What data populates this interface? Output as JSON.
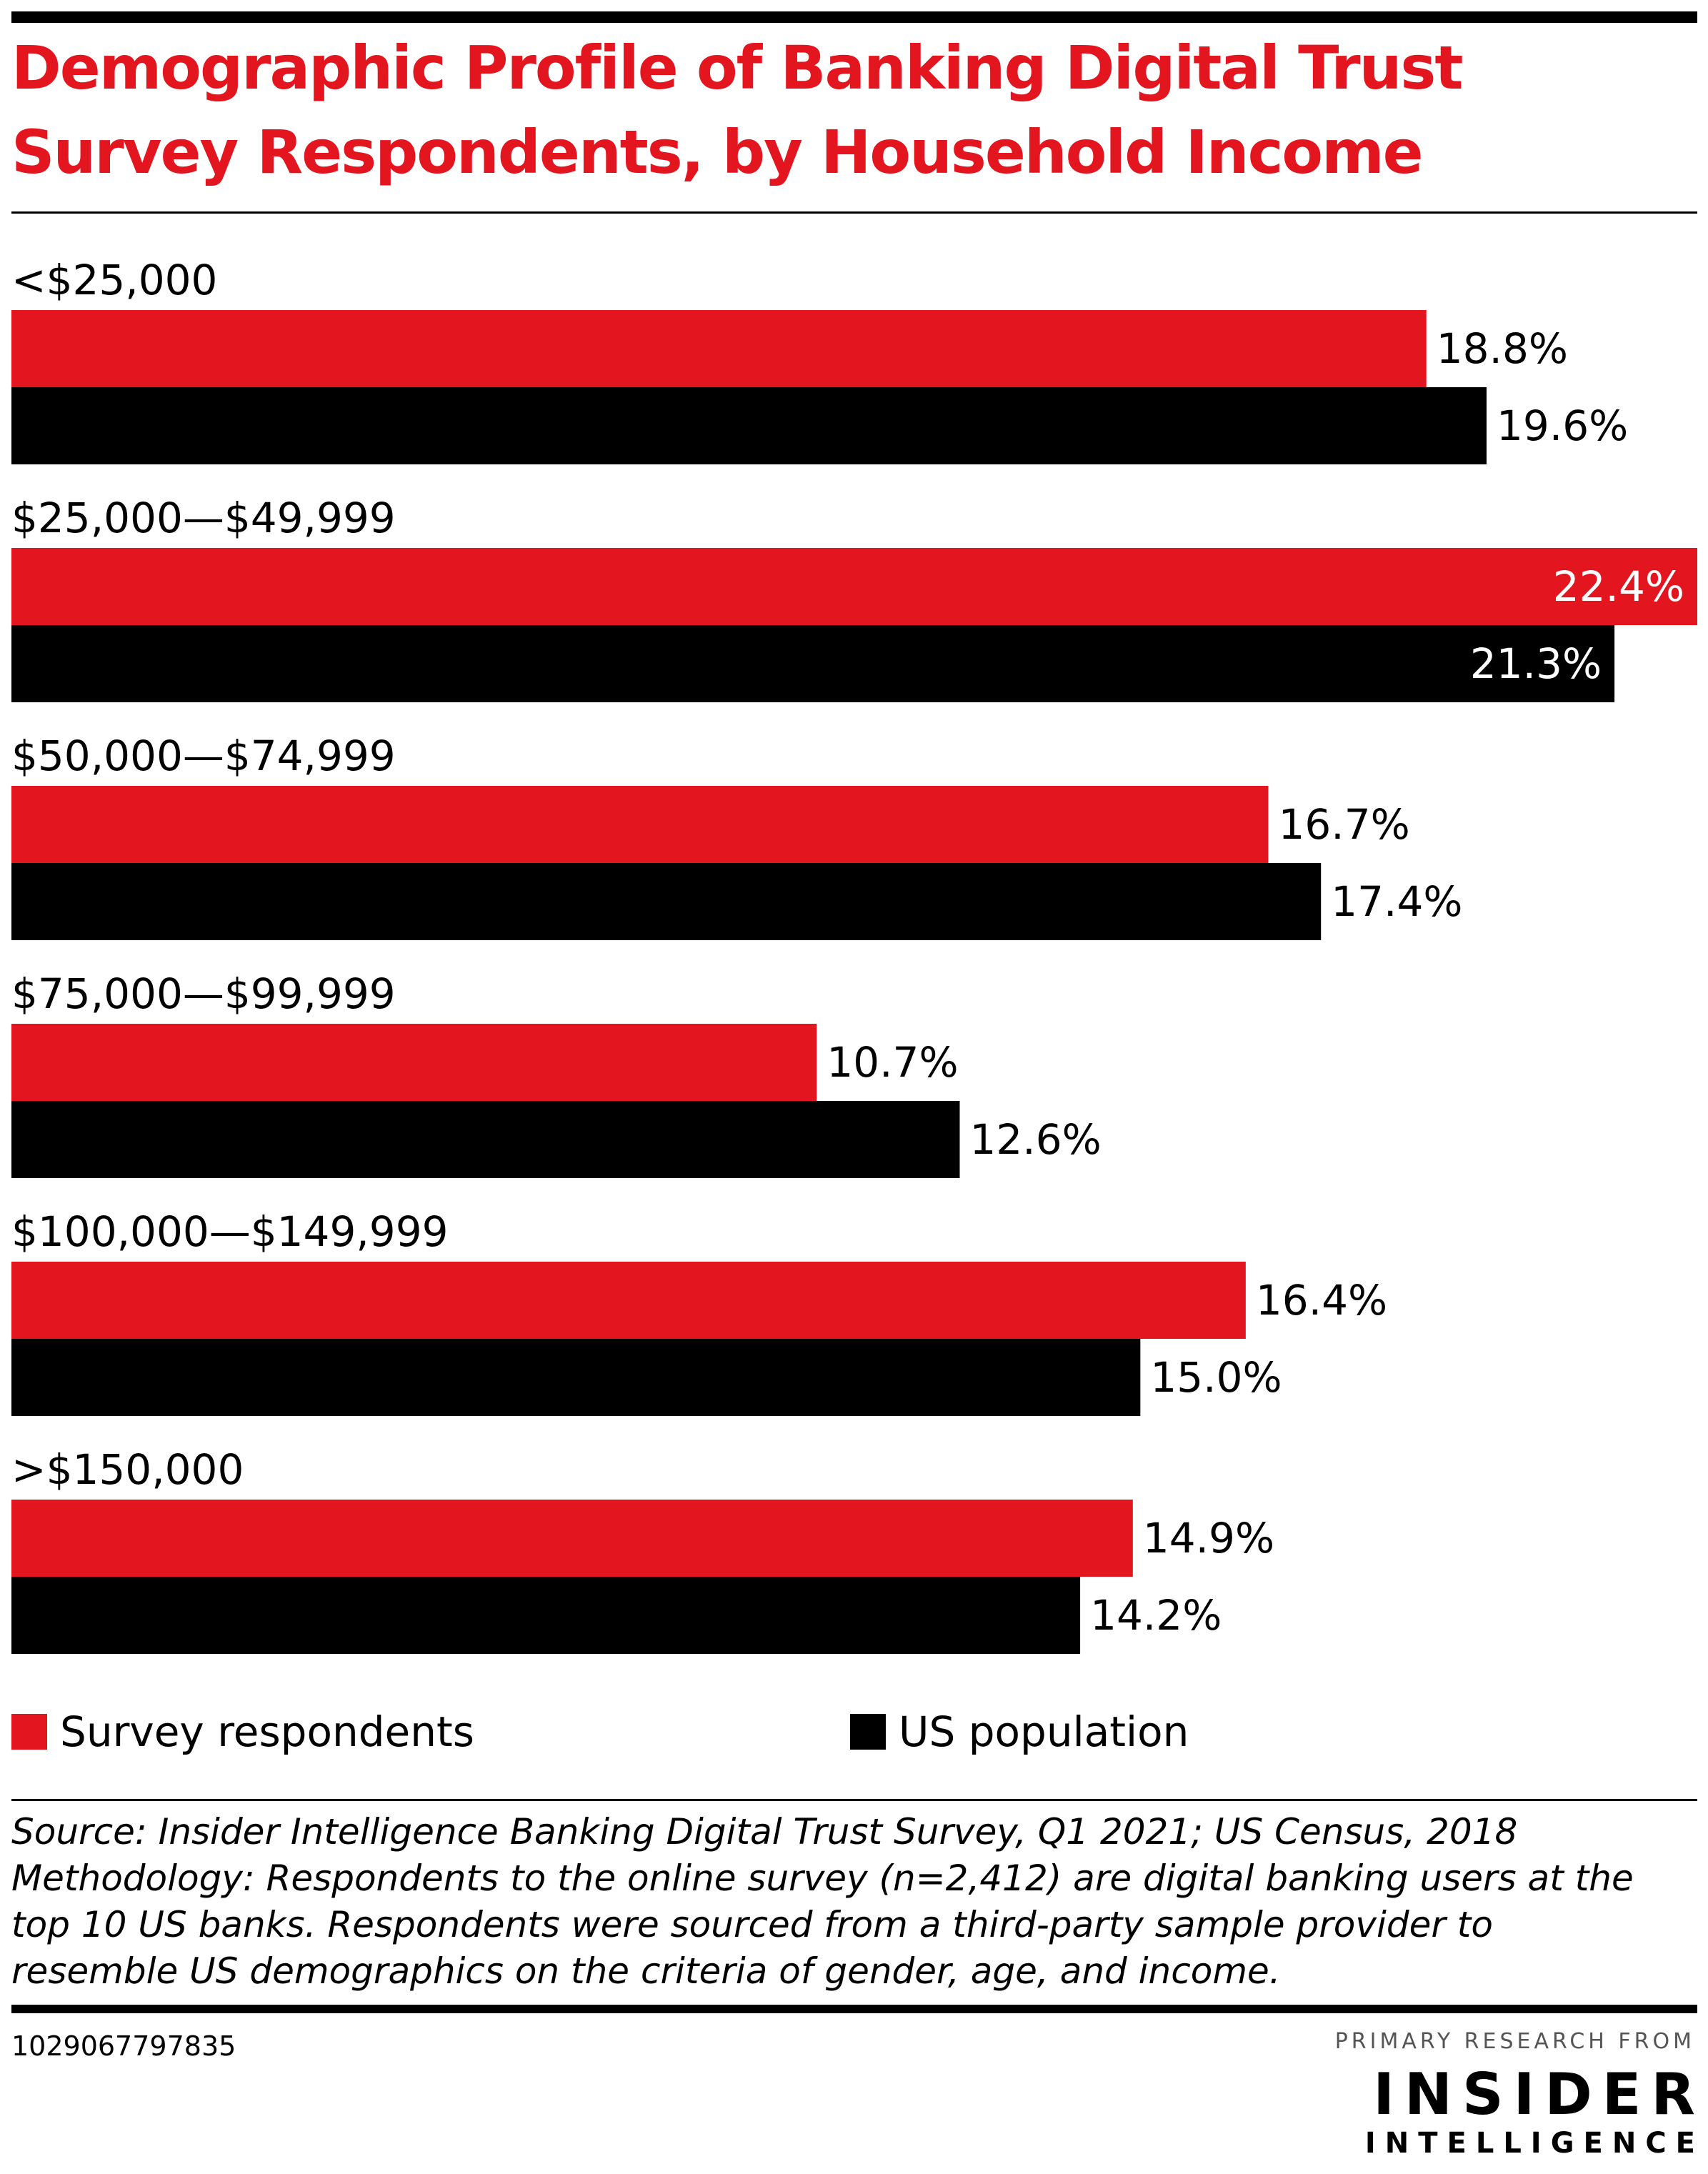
{
  "title": {
    "line1": "Demographic Profile of Banking Digital Trust",
    "line2": "Survey Respondents, by Household Income"
  },
  "colors": {
    "survey": "#e3151e",
    "population": "#000000",
    "inside_label": "#ffffff",
    "outside_label": "#000000"
  },
  "chart_data": {
    "type": "bar",
    "orientation": "horizontal",
    "title": "Demographic Profile of Banking Digital Trust Survey Respondents, by Household Income",
    "categories": [
      "<$25,000",
      "$25,000—$49,999",
      "$50,000—$74,999",
      "$75,000—$99,999",
      "$100,000—$149,999",
      ">$150,000"
    ],
    "series": [
      {
        "name": "Survey respondents",
        "values": [
          18.8,
          22.4,
          16.7,
          10.7,
          16.4,
          14.9
        ],
        "labels": [
          "18.8%",
          "22.4%",
          "16.7%",
          "10.7%",
          "16.4%",
          "14.9%"
        ],
        "color": "#e3151e"
      },
      {
        "name": "US population",
        "values": [
          19.6,
          21.3,
          17.4,
          12.6,
          15.0,
          14.2
        ],
        "labels": [
          "19.6%",
          "21.3%",
          "17.4%",
          "12.6%",
          "15.0%",
          "14.2%"
        ],
        "color": "#000000"
      }
    ],
    "value_unit": "%",
    "xlim": [
      0,
      22.4
    ],
    "grid": false,
    "legend_position": "bottom"
  },
  "legend": {
    "survey_label": "Survey respondents",
    "population_label": "US population"
  },
  "footer": {
    "source": "Source: Insider Intelligence Banking Digital Trust Survey, Q1 2021; US Census, 2018",
    "methodology_1": "Methodology: Respondents to the online survey (n=2,412) are digital banking users at the",
    "methodology_2": "top 10 US banks. Respondents were sourced from a third-party sample provider to",
    "methodology_3": "resemble US demographics on the criteria of gender, age, and income.",
    "chart_id": "1029067797835"
  },
  "brand": {
    "kicker": "PRIMARY RESEARCH FROM",
    "name": "INSIDER",
    "sub": "INTELLIGENCE"
  }
}
